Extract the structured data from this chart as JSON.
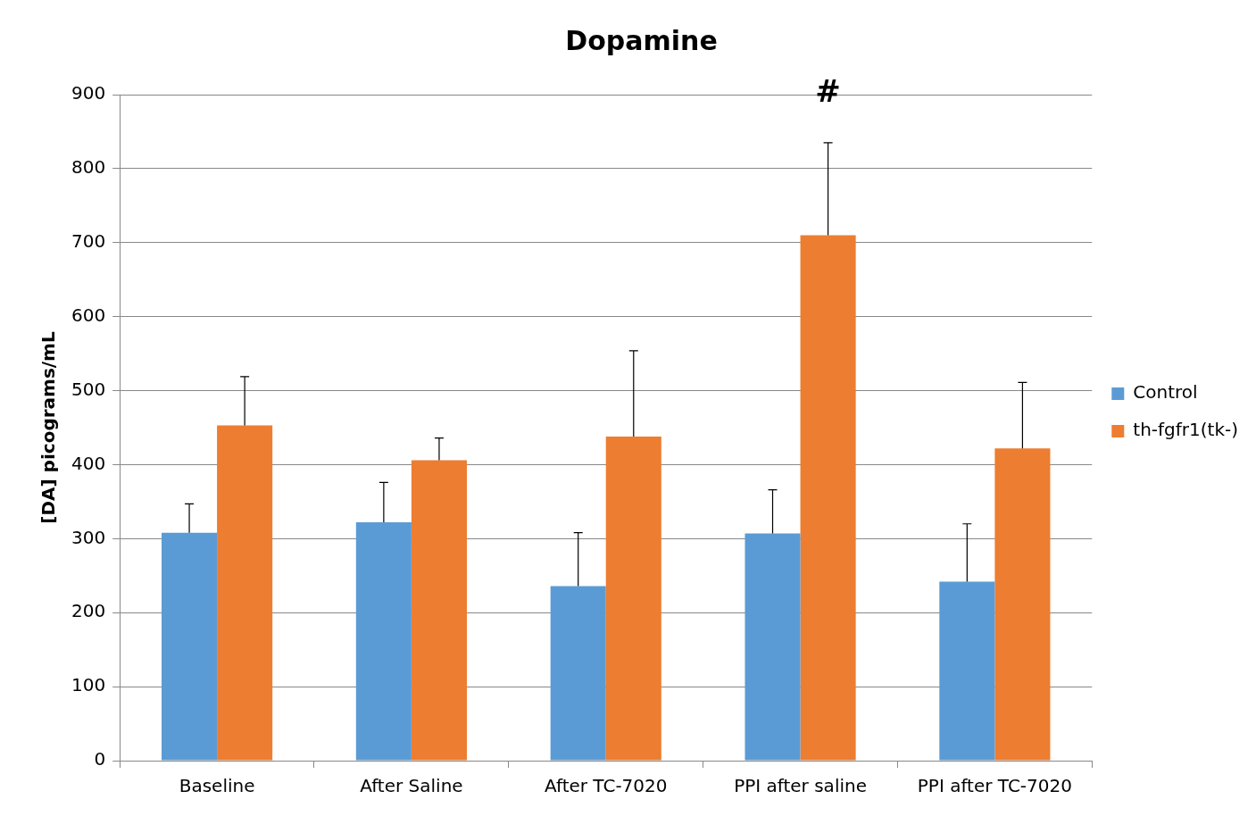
{
  "chart_data": {
    "type": "bar",
    "title": "Dopamine",
    "ylabel": "[DA] picograms/mL",
    "categories": [
      "Baseline",
      "After Saline",
      "After TC-7020",
      "PPI after saline",
      "PPI after TC-7020"
    ],
    "series": [
      {
        "name": "Control",
        "color": "#5b9bd5",
        "values": [
          308,
          322,
          236,
          307,
          242
        ],
        "errors": [
          [
            308,
            347
          ],
          [
            322,
            376
          ],
          [
            236,
            308
          ],
          [
            307,
            366
          ],
          [
            242,
            320
          ]
        ]
      },
      {
        "name": "th-fgfr1(tk-)",
        "color": "#ed7d31",
        "values": [
          453,
          406,
          438,
          710,
          422
        ],
        "errors": [
          [
            453,
            519
          ],
          [
            406,
            436
          ],
          [
            438,
            554
          ],
          [
            710,
            835
          ],
          [
            422,
            511
          ]
        ]
      }
    ],
    "annotations": [
      "#"
    ],
    "ylim": [
      0,
      900
    ],
    "yticks": [
      0,
      100,
      200,
      300,
      400,
      500,
      600,
      700,
      800,
      900
    ],
    "grid": "y",
    "legend": "right"
  }
}
